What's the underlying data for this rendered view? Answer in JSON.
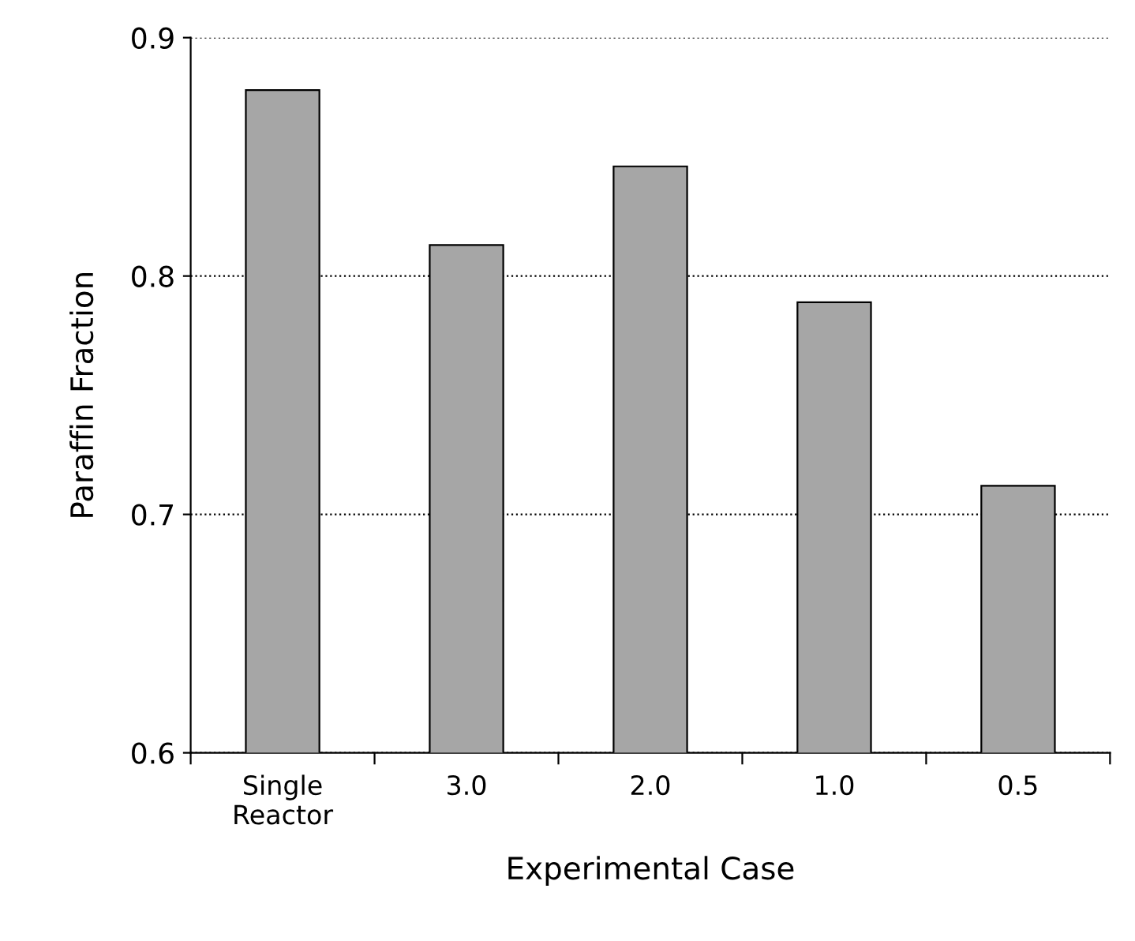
{
  "chart_data": {
    "type": "bar",
    "xlabel": "Experimental Case",
    "ylabel": "Paraffin Fraction",
    "categories": [
      "Single\nReactor",
      "3.0",
      "2.0",
      "1.0",
      "0.5"
    ],
    "values": [
      0.878,
      0.813,
      0.846,
      0.789,
      0.712
    ],
    "color": "#a6a6a6",
    "ylim": [
      0.6,
      0.9
    ],
    "yticks": [
      0.6,
      0.7,
      0.8,
      0.9
    ],
    "grid": "y"
  }
}
